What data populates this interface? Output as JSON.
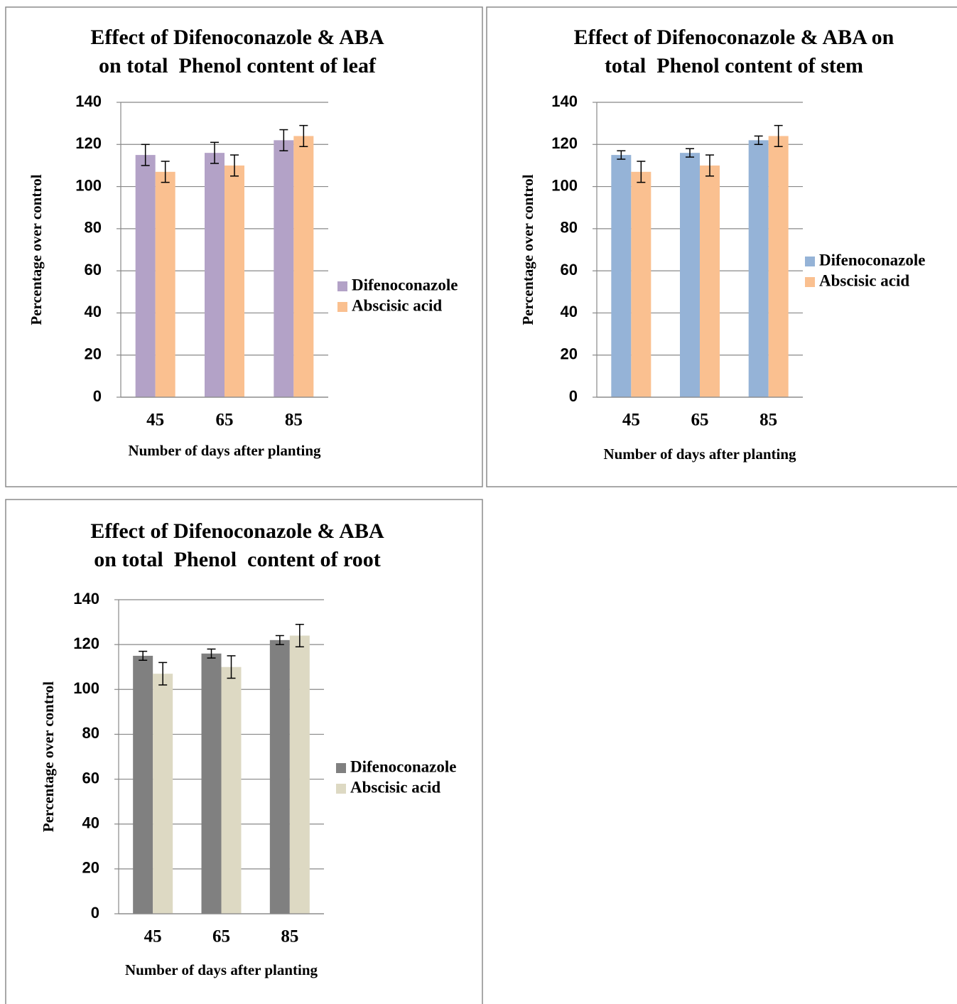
{
  "chart_data": [
    {
      "type": "bar",
      "title": [
        "Effect of Difenoconazole & ABA",
        "on total  Phenol content of leaf"
      ],
      "x_label": "Number of days after planting",
      "y_label": "Percentage over control",
      "categories": [
        "45",
        "65",
        "85"
      ],
      "series": [
        {
          "name": "Difenoconazole",
          "color": "#b3a2c7",
          "values": [
            115,
            116,
            122
          ],
          "errors": [
            5,
            5,
            5
          ]
        },
        {
          "name": "Abscisic acid",
          "color": "#fac090",
          "values": [
            107,
            110,
            124
          ],
          "errors": [
            5,
            5,
            5
          ]
        }
      ],
      "ylim": [
        0,
        140
      ],
      "yticks": [
        0,
        20,
        40,
        60,
        80,
        100,
        120,
        140
      ],
      "grid": true,
      "legend": "right"
    },
    {
      "type": "bar",
      "title": [
        "Effect of Difenoconazole & ABA on",
        "total  Phenol content of stem"
      ],
      "x_label": "Number of days after planting",
      "y_label": "Percentage over control",
      "categories": [
        "45",
        "65",
        "85"
      ],
      "series": [
        {
          "name": "Difenoconazole",
          "color": "#95b3d7",
          "values": [
            115,
            116,
            122
          ],
          "errors": [
            2,
            2,
            2
          ]
        },
        {
          "name": "Abscisic acid",
          "color": "#fac090",
          "values": [
            107,
            110,
            124
          ],
          "errors": [
            5,
            5,
            5
          ]
        }
      ],
      "ylim": [
        0,
        140
      ],
      "yticks": [
        0,
        20,
        40,
        60,
        80,
        100,
        120,
        140
      ],
      "grid": true,
      "legend": "right"
    },
    {
      "type": "bar",
      "title": [
        "Effect of Difenoconazole & ABA",
        "on total  Phenol  content of root"
      ],
      "x_label": "Number of days after planting",
      "y_label": "Percentage over control",
      "categories": [
        "45",
        "65",
        "85"
      ],
      "series": [
        {
          "name": "Difenoconazole",
          "color": "#808080",
          "values": [
            115,
            116,
            122
          ],
          "errors": [
            2,
            2,
            2
          ]
        },
        {
          "name": "Abscisic acid",
          "color": "#ddd9c3",
          "values": [
            107,
            110,
            124
          ],
          "errors": [
            5,
            5,
            5
          ]
        }
      ],
      "ylim": [
        0,
        140
      ],
      "yticks": [
        0,
        20,
        40,
        60,
        80,
        100,
        120,
        140
      ],
      "grid": true,
      "legend": "right"
    }
  ]
}
